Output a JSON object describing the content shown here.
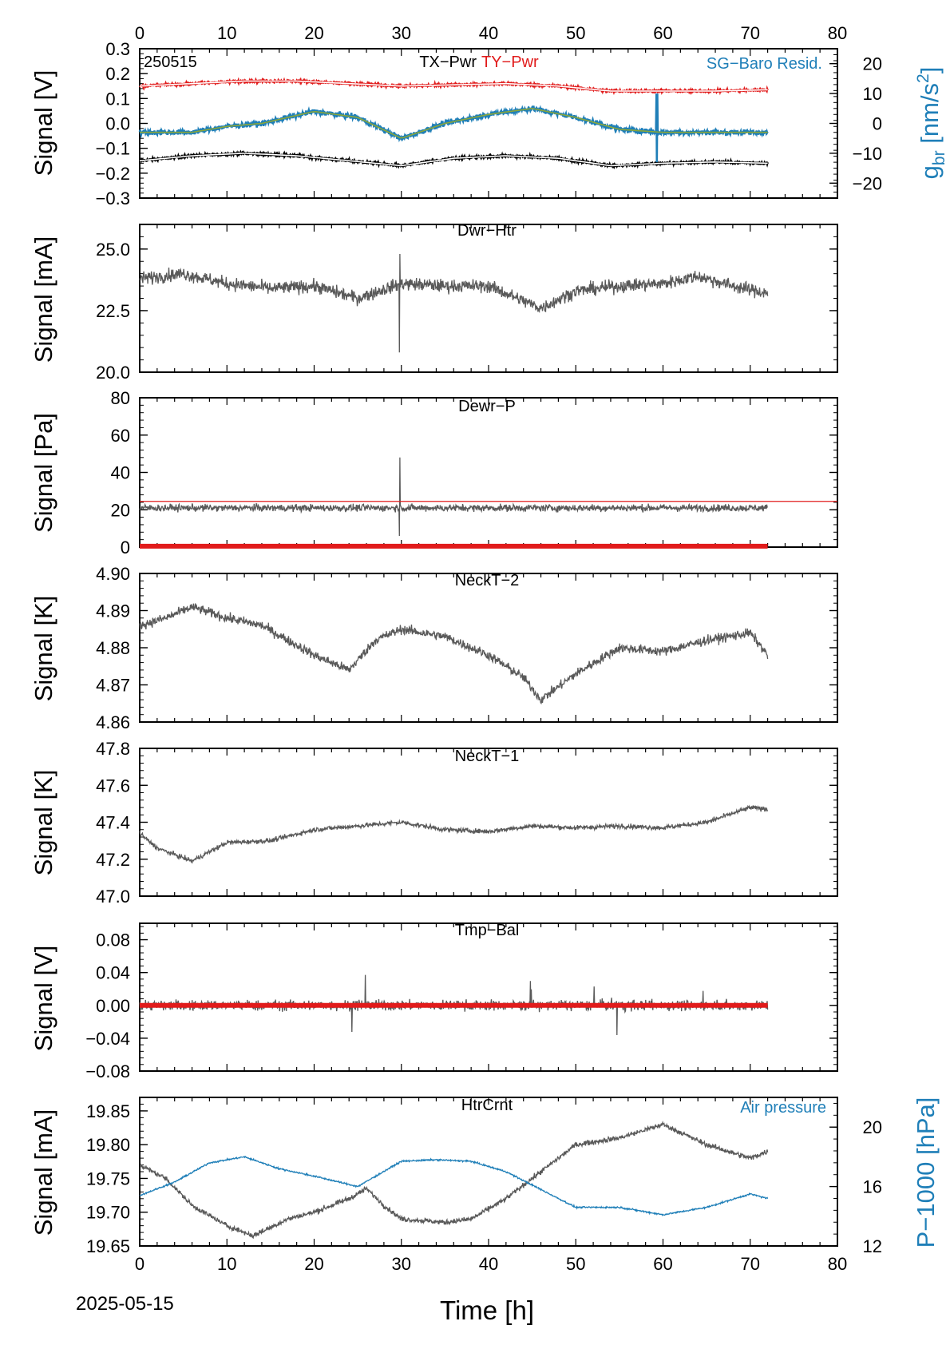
{
  "date": "2025-05-15",
  "xlabel": "Time [h]",
  "colors": {
    "trace": "#595959",
    "red": "#e11b1b",
    "blue": "#1f7fb8",
    "green": "#8aa63a",
    "black": "#000000"
  },
  "chart_data": [
    {
      "id": "pwr",
      "type": "line",
      "title_parts": [
        "TX−Pwr",
        "TY−Pwr"
      ],
      "tag": "250515",
      "right_title": "SG−Baro Resid.",
      "ylabel": "Signal [V]",
      "ylim": [
        -0.3,
        0.3
      ],
      "yticks": [
        "−0.3",
        "−0.2",
        "−0.1",
        "0.0",
        "0.1",
        "0.2",
        "0.3"
      ],
      "y2label": "g_br [nm/s^2]",
      "y2lim": [
        -25,
        25
      ],
      "y2ticks": [
        "−20",
        "−10",
        "0",
        "10",
        "20"
      ],
      "xlim": [
        0,
        80
      ],
      "series": [
        {
          "name": "TX−Pwr",
          "color": "#000000",
          "x": [
            0,
            6,
            12,
            18,
            24,
            30,
            36,
            42,
            48,
            54,
            60,
            66,
            72
          ],
          "y": [
            -0.15,
            -0.13,
            -0.12,
            -0.13,
            -0.15,
            -0.17,
            -0.14,
            -0.13,
            -0.14,
            -0.17,
            -0.16,
            -0.155,
            -0.16
          ]
        },
        {
          "name": "TY−Pwr",
          "color": "#e11b1b",
          "x": [
            0,
            6,
            12,
            18,
            24,
            30,
            36,
            42,
            48,
            54,
            60,
            66,
            72
          ],
          "y": [
            0.15,
            0.16,
            0.17,
            0.17,
            0.16,
            0.15,
            0.155,
            0.16,
            0.15,
            0.13,
            0.13,
            0.13,
            0.135
          ]
        },
        {
          "name": "SG−Baro Resid.",
          "color": "#1f7fb8",
          "axis": "right",
          "x": [
            0,
            6,
            10,
            14,
            20,
            25,
            30,
            35,
            40,
            45,
            50,
            55,
            60,
            66,
            72
          ],
          "y": [
            -3,
            -3,
            -1,
            0,
            4,
            2,
            -5,
            0,
            3,
            5,
            2,
            -2,
            -3,
            -3,
            -3
          ]
        }
      ]
    },
    {
      "id": "dwrhtr",
      "type": "line",
      "title": "Dwr−Htr",
      "ylabel": "Signal [mA]",
      "ylim": [
        20,
        26
      ],
      "yticks": [
        "20.0",
        "22.5",
        "25.0"
      ],
      "xlim": [
        0,
        80
      ],
      "series": [
        {
          "color": "#595959",
          "x": [
            0,
            5,
            10,
            15,
            20,
            25,
            30,
            35,
            40,
            46,
            50,
            55,
            60,
            64,
            68,
            72
          ],
          "y": [
            23.8,
            24.0,
            23.6,
            23.4,
            23.5,
            23.0,
            23.6,
            23.5,
            23.5,
            22.6,
            23.3,
            23.5,
            23.6,
            23.9,
            23.5,
            23.2
          ]
        }
      ]
    },
    {
      "id": "dewrp",
      "type": "line",
      "title": "Dewr−P",
      "ylabel": "Signal [Pa]",
      "ylim": [
        0,
        80
      ],
      "yticks": [
        "0",
        "20",
        "40",
        "60",
        "80"
      ],
      "xlim": [
        0,
        80
      ],
      "series": [
        {
          "color": "#595959",
          "x": [
            0,
            72
          ],
          "y": [
            21,
            21
          ]
        },
        {
          "color": "#e11b1b",
          "x": [
            0,
            80
          ],
          "y": [
            24.5,
            24.5
          ]
        },
        {
          "color": "#e11b1b",
          "x": [
            0,
            72
          ],
          "y": [
            0.5,
            0.5
          ]
        }
      ]
    },
    {
      "id": "neckt2",
      "type": "line",
      "title": "NeckT−2",
      "ylabel": "Signal [K]",
      "ylim": [
        4.86,
        4.9
      ],
      "yticks": [
        "4.86",
        "4.87",
        "4.88",
        "4.89",
        "4.90"
      ],
      "xlim": [
        0,
        80
      ],
      "series": [
        {
          "color": "#595959",
          "x": [
            0,
            3,
            6,
            10,
            14,
            20,
            24,
            27,
            30,
            35,
            40,
            44,
            46,
            50,
            55,
            60,
            65,
            70,
            72
          ],
          "y": [
            4.886,
            4.888,
            4.891,
            4.888,
            4.886,
            4.878,
            4.874,
            4.882,
            4.885,
            4.883,
            4.878,
            4.872,
            4.866,
            4.873,
            4.88,
            4.879,
            4.882,
            4.884,
            4.878
          ]
        }
      ]
    },
    {
      "id": "neckt1",
      "type": "line",
      "title": "NeckT−1",
      "ylabel": "Signal [K]",
      "ylim": [
        47.0,
        47.8
      ],
      "yticks": [
        "47.0",
        "47.2",
        "47.4",
        "47.6",
        "47.8"
      ],
      "xlim": [
        0,
        80
      ],
      "series": [
        {
          "color": "#595959",
          "x": [
            0,
            2,
            6,
            10,
            15,
            20,
            25,
            30,
            35,
            40,
            45,
            50,
            55,
            60,
            65,
            70,
            72
          ],
          "y": [
            47.34,
            47.26,
            47.19,
            47.29,
            47.3,
            47.36,
            47.38,
            47.4,
            47.36,
            47.35,
            47.38,
            47.37,
            47.38,
            47.37,
            47.4,
            47.48,
            47.47
          ]
        }
      ]
    },
    {
      "id": "tmpbal",
      "type": "line",
      "title": "Tmp−Bal",
      "ylabel": "Signal [V]",
      "ylim": [
        -0.08,
        0.1
      ],
      "yticks": [
        "−0.08",
        "−0.04",
        "0.00",
        "0.04",
        "0.08"
      ],
      "xlim": [
        0,
        80
      ],
      "series": [
        {
          "color": "#595959",
          "x": [
            0,
            72
          ],
          "y": [
            0,
            0
          ]
        },
        {
          "color": "#e11b1b",
          "x": [
            0,
            72
          ],
          "y": [
            0,
            0
          ]
        }
      ]
    },
    {
      "id": "htrcrnt",
      "type": "line",
      "title": "HtrCrnt",
      "right_title": "Air pressure",
      "ylabel": "Signal [mA]",
      "ylim": [
        19.65,
        19.87
      ],
      "yticks": [
        "19.65",
        "19.70",
        "19.75",
        "19.80",
        "19.85"
      ],
      "y2label": "P−1000 [hPa]",
      "y2lim": [
        12,
        22
      ],
      "y2ticks": [
        "12",
        "16",
        "20"
      ],
      "xlim": [
        0,
        80
      ],
      "xticks": [
        "0",
        "10",
        "20",
        "30",
        "40",
        "50",
        "60",
        "70",
        "80"
      ],
      "series": [
        {
          "color": "#595959",
          "x": [
            0,
            3,
            6,
            10,
            13,
            17,
            20,
            24,
            26,
            28,
            30,
            35,
            38,
            42,
            46,
            50,
            55,
            60,
            65,
            70,
            72
          ],
          "y": [
            19.77,
            19.75,
            19.71,
            19.68,
            19.665,
            19.69,
            19.7,
            19.72,
            19.735,
            19.71,
            19.69,
            19.685,
            19.69,
            19.72,
            19.76,
            19.8,
            19.81,
            19.83,
            19.8,
            19.78,
            19.79
          ]
        },
        {
          "name": "Air pressure",
          "color": "#1f7fb8",
          "axis": "right",
          "x": [
            0,
            4,
            8,
            12,
            16,
            20,
            25,
            30,
            34,
            38,
            42,
            46,
            50,
            55,
            60,
            65,
            70,
            72
          ],
          "y": [
            15.4,
            16.3,
            17.6,
            18.0,
            17.2,
            16.7,
            16.0,
            17.7,
            17.8,
            17.7,
            17.0,
            15.8,
            14.6,
            14.6,
            14.1,
            14.6,
            15.5,
            15.2
          ]
        }
      ]
    }
  ]
}
